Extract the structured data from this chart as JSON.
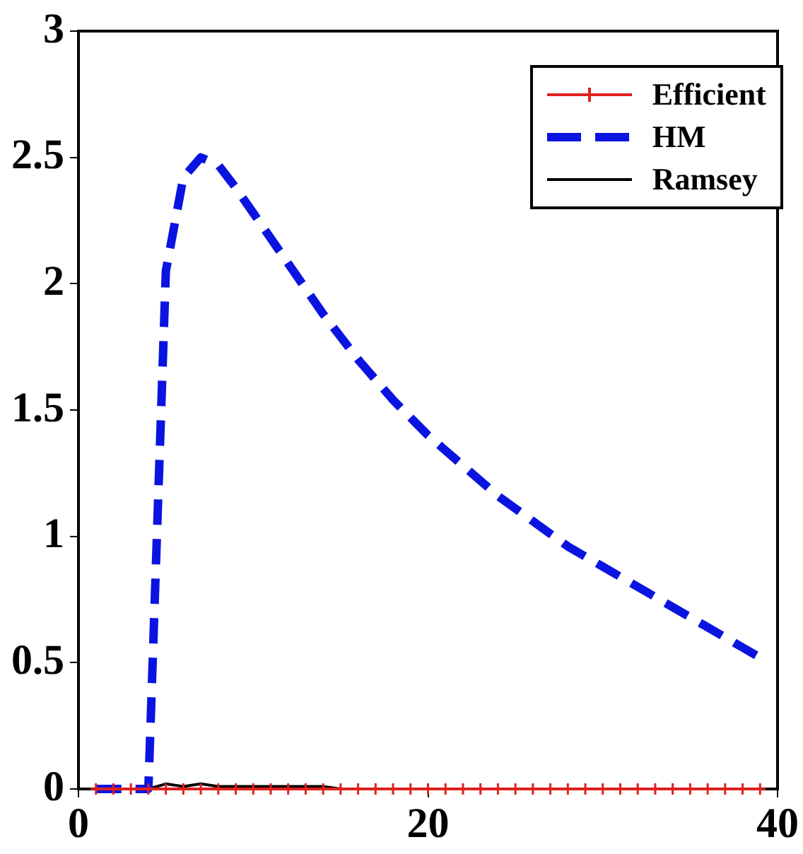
{
  "chart_data": {
    "type": "line",
    "x": [
      1,
      2,
      3,
      4,
      5,
      6,
      7,
      8,
      9,
      10,
      11,
      12,
      13,
      14,
      15,
      16,
      17,
      18,
      19,
      20,
      21,
      22,
      23,
      24,
      25,
      26,
      27,
      28,
      29,
      30,
      31,
      32,
      33,
      34,
      35,
      36,
      37,
      38,
      39
    ],
    "series": [
      {
        "name": "Efficient",
        "color": "#e02020",
        "marker": "cross",
        "line_style": "solid",
        "values": [
          0,
          0,
          0,
          0,
          0,
          0,
          0,
          0,
          0,
          0,
          0,
          0,
          0,
          0,
          0,
          0,
          0,
          0,
          0,
          0,
          0,
          0,
          0,
          0,
          0,
          0,
          0,
          0,
          0,
          0,
          0,
          0,
          0,
          0,
          0,
          0,
          0,
          0,
          0
        ]
      },
      {
        "name": "HM",
        "color": "#0a14e0",
        "marker": "none",
        "line_style": "dashed",
        "values": [
          0,
          0,
          0,
          0,
          2.05,
          2.42,
          2.5,
          2.47,
          2.38,
          2.28,
          2.18,
          2.08,
          1.98,
          1.88,
          1.79,
          1.7,
          1.62,
          1.54,
          1.47,
          1.4,
          1.34,
          1.28,
          1.22,
          1.16,
          1.11,
          1.06,
          1.01,
          0.96,
          0.92,
          0.88,
          0.84,
          0.8,
          0.76,
          0.72,
          0.68,
          0.64,
          0.6,
          0.56,
          0.52
        ]
      },
      {
        "name": "Ramsey",
        "color": "#000000",
        "marker": "none",
        "line_style": "solid",
        "values": [
          null,
          null,
          null,
          0,
          0.02,
          0.01,
          0.02,
          0.01,
          0.01,
          0.01,
          0.01,
          0.01,
          0.01,
          0.01,
          0,
          null,
          null,
          null,
          null,
          null,
          null,
          null,
          null,
          null,
          null,
          null,
          null,
          null,
          null,
          null,
          null,
          null,
          null,
          null,
          null,
          null,
          null,
          null,
          null
        ]
      }
    ],
    "xlim": [
      0,
      40
    ],
    "xticks": [
      0,
      20,
      40
    ],
    "ylim": [
      0,
      3
    ],
    "yticks": [
      0,
      0.5,
      1,
      1.5,
      2,
      2.5,
      3
    ],
    "grid": false,
    "legend": "top right"
  }
}
